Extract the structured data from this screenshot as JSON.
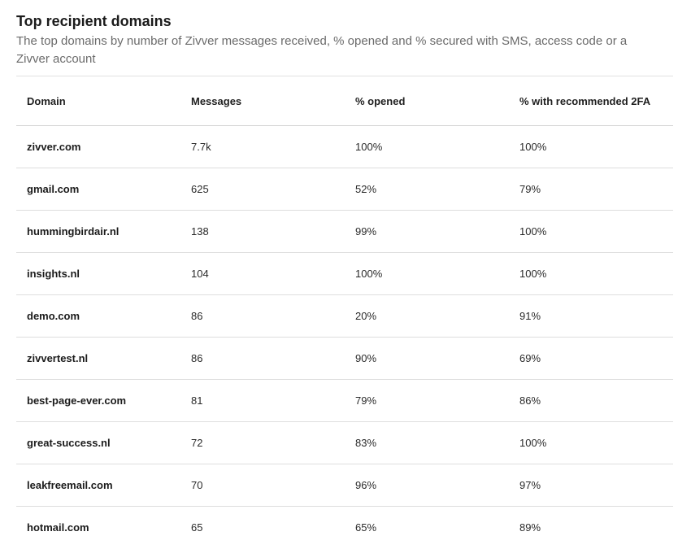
{
  "header": {
    "title": "Top recipient domains",
    "subtitle": "The top domains by number of Zivver messages received, % opened and % secured with SMS, access code or a Zivver account"
  },
  "table": {
    "columns": [
      "Domain",
      "Messages",
      "% opened",
      "% with recommended 2FA"
    ],
    "rows": [
      {
        "domain": "zivver.com",
        "messages": "7.7k",
        "opened": "100%",
        "twofa": "100%"
      },
      {
        "domain": "gmail.com",
        "messages": "625",
        "opened": "52%",
        "twofa": "79%"
      },
      {
        "domain": "hummingbirdair.nl",
        "messages": "138",
        "opened": "99%",
        "twofa": "100%"
      },
      {
        "domain": "insights.nl",
        "messages": "104",
        "opened": "100%",
        "twofa": "100%"
      },
      {
        "domain": "demo.com",
        "messages": "86",
        "opened": "20%",
        "twofa": "91%"
      },
      {
        "domain": "zivvertest.nl",
        "messages": "86",
        "opened": "90%",
        "twofa": "69%"
      },
      {
        "domain": "best-page-ever.com",
        "messages": "81",
        "opened": "79%",
        "twofa": "86%"
      },
      {
        "domain": "great-success.nl",
        "messages": "72",
        "opened": "83%",
        "twofa": "100%"
      },
      {
        "domain": "leakfreemail.com",
        "messages": "70",
        "opened": "96%",
        "twofa": "97%"
      },
      {
        "domain": "hotmail.com",
        "messages": "65",
        "opened": "65%",
        "twofa": "89%"
      }
    ]
  }
}
